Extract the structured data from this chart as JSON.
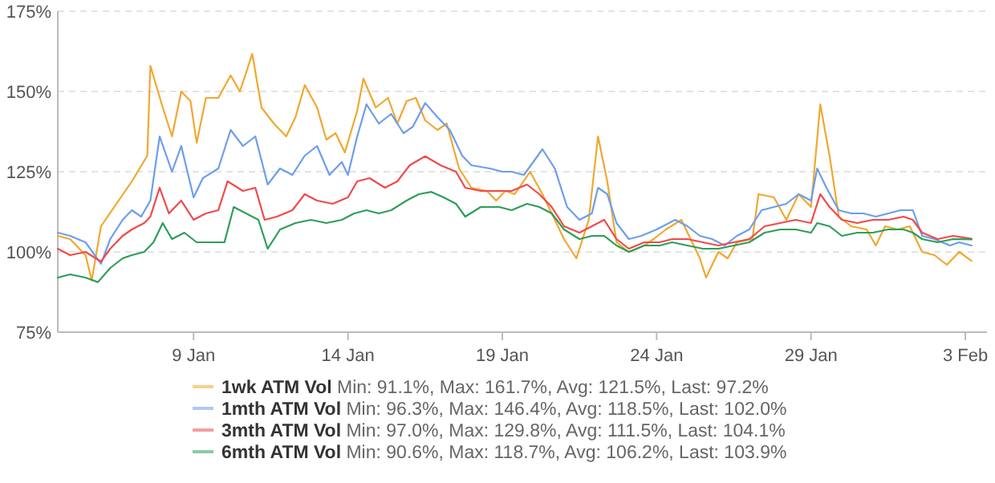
{
  "chart_data": {
    "type": "line",
    "xlim": [
      "--01-04T14:24",
      "--02-03T16:48"
    ],
    "xticks": [
      {
        "value": "--01-09",
        "label": "9 Jan"
      },
      {
        "value": "--01-14",
        "label": "14 Jan"
      },
      {
        "value": "--01-19",
        "label": "19 Jan"
      },
      {
        "value": "--01-24",
        "label": "24 Jan"
      },
      {
        "value": "--01-29",
        "label": "29 Jan"
      },
      {
        "value": "--02-03",
        "label": "3 Feb"
      }
    ],
    "ylim": [
      75,
      175
    ],
    "yticks": [
      {
        "value": 75,
        "label": "75%"
      },
      {
        "value": 100,
        "label": "100%"
      },
      {
        "value": 125,
        "label": "125%"
      },
      {
        "value": 150,
        "label": "150%"
      },
      {
        "value": 175,
        "label": "175%"
      }
    ],
    "grid": "y",
    "legend": "bottom",
    "marker": "none",
    "line_style": "solid",
    "annotations": [
      "Min: 91.1%, Max: 161.7%, Avg: 121.5%, Last: 97.2%",
      "Min: 96.3%, Max: 146.4%, Avg: 118.5%, Last: 102.0%",
      "Min: 97.0%, Max: 129.8%, Avg: 111.5%, Last: 104.1%",
      "Min: 90.6%, Max: 118.7%, Avg: 106.2%, Last: 103.9%"
    ],
    "series": [
      {
        "name": "1wk ATM Vol",
        "color": "#f0a830",
        "x": [
          "--01-04T14:24",
          "--01-05T00:00",
          "--01-05T12:00",
          "--01-05T16:48",
          "--01-06T00:00",
          "--01-06T12:00",
          "--01-07T00:00",
          "--01-07T12:00",
          "--01-07T14:24",
          "--01-08T00:00",
          "--01-08T07:12",
          "--01-08T14:24",
          "--01-08T21:36",
          "--01-09T02:24",
          "--01-09T09:36",
          "--01-09T19:12",
          "--01-10T04:48",
          "--01-10T12:00",
          "--01-10T21:36",
          "--01-11T04:48",
          "--01-11T14:24",
          "--01-12T00:00",
          "--01-12T07:12",
          "--01-12T14:24",
          "--01-13T00:00",
          "--01-13T07:12",
          "--01-13T14:24",
          "--01-13T21:36",
          "--01-14T07:12",
          "--01-14T12:00",
          "--01-14T21:36",
          "--01-15T07:12",
          "--01-15T14:24",
          "--01-15T21:36",
          "--01-16T04:48",
          "--01-16T12:00",
          "--01-16T21:36",
          "--01-17T04:48",
          "--01-17T14:24",
          "--01-18T00:00",
          "--01-18T12:00",
          "--01-18T19:12",
          "--01-19T02:24",
          "--01-19T09:36",
          "--01-19T21:36",
          "--01-20T07:12",
          "--01-20T14:24",
          "--01-21T00:00",
          "--01-21T09:36",
          "--01-21T19:12",
          "--01-22T02:24",
          "--01-22T09:36",
          "--01-22T16:48",
          "--01-23T02:24",
          "--01-23T14:24",
          "--01-23T21:36",
          "--01-24T07:12",
          "--01-24T19:12",
          "--01-25T02:24",
          "--01-25T09:36",
          "--01-25T14:24",
          "--01-26T00:00",
          "--01-26T07:12",
          "--01-26T14:24",
          "--01-27T02:24",
          "--01-27T07:12",
          "--01-27T19:12",
          "--01-28T04:48",
          "--01-28T14:24",
          "--01-29T00:00",
          "--01-29T07:12",
          "--01-29T14:24",
          "--01-29T21:36",
          "--01-30T07:12",
          "--01-30T19:12",
          "--01-31T02:24",
          "--01-31T09:36",
          "--01-31T19:12",
          "--02-01T04:48",
          "--02-01T14:24",
          "--02-02T00:00",
          "--02-02T09:36",
          "--02-02T19:12",
          "--02-03T04:48"
        ],
        "values": [
          105,
          104,
          99,
          91.1,
          108,
          115,
          122,
          130,
          158,
          145,
          136,
          150,
          147,
          134,
          148,
          148,
          155,
          150,
          161.7,
          145,
          140,
          136,
          142,
          152,
          145,
          135,
          137,
          131,
          144,
          154,
          145,
          148,
          140,
          147,
          148,
          141,
          138,
          140,
          126,
          120,
          119,
          116,
          119,
          118,
          125,
          118,
          112,
          104,
          98,
          110,
          136,
          122,
          103,
          100,
          102,
          104,
          107,
          110,
          104,
          98,
          92,
          100,
          98,
          103,
          104,
          118,
          117,
          110,
          118,
          114,
          146,
          130,
          111,
          108,
          107,
          102,
          108,
          107,
          108,
          100,
          99,
          96,
          100,
          97.2
        ]
      },
      {
        "name": "1mth ATM Vol",
        "color": "#6d9eeb",
        "x": [
          "--01-04T14:24",
          "--01-05T00:00",
          "--01-05T12:00",
          "--01-06T00:00",
          "--01-06T07:12",
          "--01-06T16:48",
          "--01-07T00:00",
          "--01-07T07:12",
          "--01-07T14:24",
          "--01-07T21:36",
          "--01-08T07:12",
          "--01-08T14:24",
          "--01-09T00:00",
          "--01-09T07:12",
          "--01-09T19:12",
          "--01-10T04:48",
          "--01-10T14:24",
          "--01-11T00:00",
          "--01-11T09:36",
          "--01-11T19:12",
          "--01-12T04:48",
          "--01-12T14:24",
          "--01-13T00:00",
          "--01-13T09:36",
          "--01-13T19:12",
          "--01-14T00:00",
          "--01-14T07:12",
          "--01-14T14:24",
          "--01-15T00:00",
          "--01-15T09:36",
          "--01-15T19:12",
          "--01-16T02:24",
          "--01-16T12:00",
          "--01-16T21:36",
          "--01-17T07:12",
          "--01-17T16:48",
          "--01-18T00:00",
          "--01-18T14:24",
          "--01-19T00:00",
          "--01-19T07:12",
          "--01-19T16:48",
          "--01-20T00:00",
          "--01-20T07:12",
          "--01-20T16:48",
          "--01-21T02:24",
          "--01-21T12:00",
          "--01-21T21:36",
          "--01-22T02:24",
          "--01-22T09:36",
          "--01-22T16:48",
          "--01-23T02:24",
          "--01-23T12:00",
          "--01-24T00:00",
          "--01-24T14:24",
          "--01-25T00:00",
          "--01-25T09:36",
          "--01-25T19:12",
          "--01-26T04:48",
          "--01-26T14:24",
          "--01-27T00:00",
          "--01-27T09:36",
          "--01-27T19:12",
          "--01-28T04:48",
          "--01-28T14:24",
          "--01-29T00:00",
          "--01-29T04:48",
          "--01-29T12:00",
          "--01-29T21:36",
          "--01-30T07:12",
          "--01-30T16:48",
          "--01-31T02:24",
          "--01-31T12:00",
          "--01-31T21:36",
          "--02-01T07:12",
          "--02-01T14:24",
          "--02-02T00:00",
          "--02-02T12:00",
          "--02-02T19:12",
          "--02-03T04:48"
        ],
        "values": [
          106,
          105,
          103,
          96.3,
          104,
          110,
          113,
          111,
          116,
          136,
          125,
          133,
          117,
          123,
          126,
          138,
          133,
          136,
          121,
          126,
          124,
          130,
          133,
          124,
          128,
          124,
          136,
          146,
          140,
          143,
          137,
          139,
          146.4,
          142,
          138,
          130,
          127,
          126,
          125,
          125,
          124,
          128,
          132,
          126,
          114,
          110,
          112,
          120,
          118,
          109,
          104,
          105,
          107,
          110,
          108,
          105,
          104,
          102,
          105,
          107,
          113,
          114,
          115,
          118,
          116,
          126,
          120,
          113,
          112,
          112,
          111,
          112,
          113,
          113,
          105,
          104,
          102,
          103,
          102.0
        ]
      },
      {
        "name": "3mth ATM Vol",
        "color": "#f04a4a",
        "x": [
          "--01-04T14:24",
          "--01-05T00:00",
          "--01-05T12:00",
          "--01-06T00:00",
          "--01-06T07:12",
          "--01-06T16:48",
          "--01-07T00:00",
          "--01-07T09:36",
          "--01-07T14:24",
          "--01-07T21:36",
          "--01-08T04:48",
          "--01-08T14:24",
          "--01-09T00:00",
          "--01-09T09:36",
          "--01-09T19:12",
          "--01-10T02:24",
          "--01-10T14:24",
          "--01-11T00:00",
          "--01-11T07:12",
          "--01-11T16:48",
          "--01-12T04:48",
          "--01-12T14:24",
          "--01-13T00:00",
          "--01-13T12:00",
          "--01-14T00:00",
          "--01-14T07:12",
          "--01-14T16:48",
          "--01-15T04:48",
          "--01-15T14:24",
          "--01-16T00:00",
          "--01-16T12:00",
          "--01-17T00:00",
          "--01-17T12:00",
          "--01-17T19:12",
          "--01-18T07:12",
          "--01-18T21:36",
          "--01-19T07:12",
          "--01-19T19:12",
          "--01-20T04:48",
          "--01-20T14:24",
          "--01-21T00:00",
          "--01-21T12:00",
          "--01-21T21:36",
          "--01-22T07:12",
          "--01-22T16:48",
          "--01-23T02:24",
          "--01-23T14:24",
          "--01-24T02:24",
          "--01-24T12:00",
          "--01-25T00:00",
          "--01-25T12:00",
          "--01-26T00:00",
          "--01-26T12:00",
          "--01-27T00:00",
          "--01-27T12:00",
          "--01-28T00:00",
          "--01-28T12:00",
          "--01-29T00:00",
          "--01-29T07:12",
          "--01-29T14:24",
          "--01-30T00:00",
          "--01-30T12:00",
          "--01-31T00:00",
          "--01-31T12:00",
          "--02-01T00:00",
          "--02-01T07:12",
          "--02-01T14:24",
          "--02-02T02:24",
          "--02-02T14:24",
          "--02-03T04:48"
        ],
        "values": [
          101,
          99,
          100,
          97.0,
          101,
          105,
          107,
          109,
          111,
          120,
          112,
          116,
          110,
          112,
          113,
          122,
          119,
          120,
          110,
          111,
          113,
          118,
          116,
          115,
          117,
          122,
          123,
          120,
          122,
          127,
          129.8,
          127,
          125,
          120,
          119,
          119,
          119,
          121,
          118,
          114,
          108,
          106,
          108,
          110,
          104,
          101,
          103,
          103,
          104,
          104,
          103,
          102,
          103,
          104,
          108,
          109,
          110,
          109,
          118,
          114,
          110,
          109,
          110,
          110,
          111,
          110,
          106,
          104,
          105,
          104.1
        ]
      },
      {
        "name": "6mth ATM Vol",
        "color": "#2e9e5a",
        "x": [
          "--01-04T14:24",
          "--01-05T00:00",
          "--01-05T12:00",
          "--01-05T21:36",
          "--01-06T07:12",
          "--01-06T16:48",
          "--01-07T00:00",
          "--01-07T09:36",
          "--01-07T16:48",
          "--01-08T00:00",
          "--01-08T07:12",
          "--01-08T16:48",
          "--01-09T02:24",
          "--01-09T14:24",
          "--01-10T00:00",
          "--01-10T07:12",
          "--01-10T16:48",
          "--01-11T02:24",
          "--01-11T09:36",
          "--01-11T19:12",
          "--01-12T07:12",
          "--01-12T19:12",
          "--01-13T07:12",
          "--01-13T19:12",
          "--01-14T04:48",
          "--01-14T14:24",
          "--01-15T00:00",
          "--01-15T09:36",
          "--01-15T21:36",
          "--01-16T07:12",
          "--01-16T16:48",
          "--01-17T02:24",
          "--01-17T12:00",
          "--01-17T19:12",
          "--01-18T07:12",
          "--01-18T21:36",
          "--01-19T07:12",
          "--01-19T19:12",
          "--01-20T04:48",
          "--01-20T14:24",
          "--01-21T00:00",
          "--01-21T12:00",
          "--01-21T21:36",
          "--01-22T07:12",
          "--01-22T16:48",
          "--01-23T02:24",
          "--01-23T14:24",
          "--01-24T02:24",
          "--01-24T12:00",
          "--01-25T00:00",
          "--01-25T12:00",
          "--01-26T00:00",
          "--01-26T12:00",
          "--01-27T00:00",
          "--01-27T12:00",
          "--01-28T00:00",
          "--01-28T12:00",
          "--01-29T00:00",
          "--01-29T04:48",
          "--01-29T14:24",
          "--01-30T00:00",
          "--01-30T12:00",
          "--01-31T00:00",
          "--01-31T12:00",
          "--02-01T00:00",
          "--02-01T07:12",
          "--02-01T14:24",
          "--02-02T02:24",
          "--02-02T14:24",
          "--02-03T04:48"
        ],
        "values": [
          92,
          93,
          92,
          90.6,
          95,
          98,
          99,
          100,
          103,
          109,
          104,
          106,
          103,
          103,
          103,
          114,
          112,
          110,
          101,
          107,
          109,
          110,
          109,
          110,
          112,
          113,
          112,
          113,
          116,
          118,
          118.7,
          117,
          115,
          111,
          114,
          114,
          113,
          115,
          114,
          112,
          107,
          104,
          105,
          105,
          102,
          100,
          102,
          102,
          103,
          102,
          101,
          101,
          102,
          103,
          106,
          107,
          107,
          106,
          109,
          108,
          105,
          106,
          106,
          107,
          107,
          106,
          104,
          103,
          104,
          103.9
        ]
      }
    ]
  }
}
